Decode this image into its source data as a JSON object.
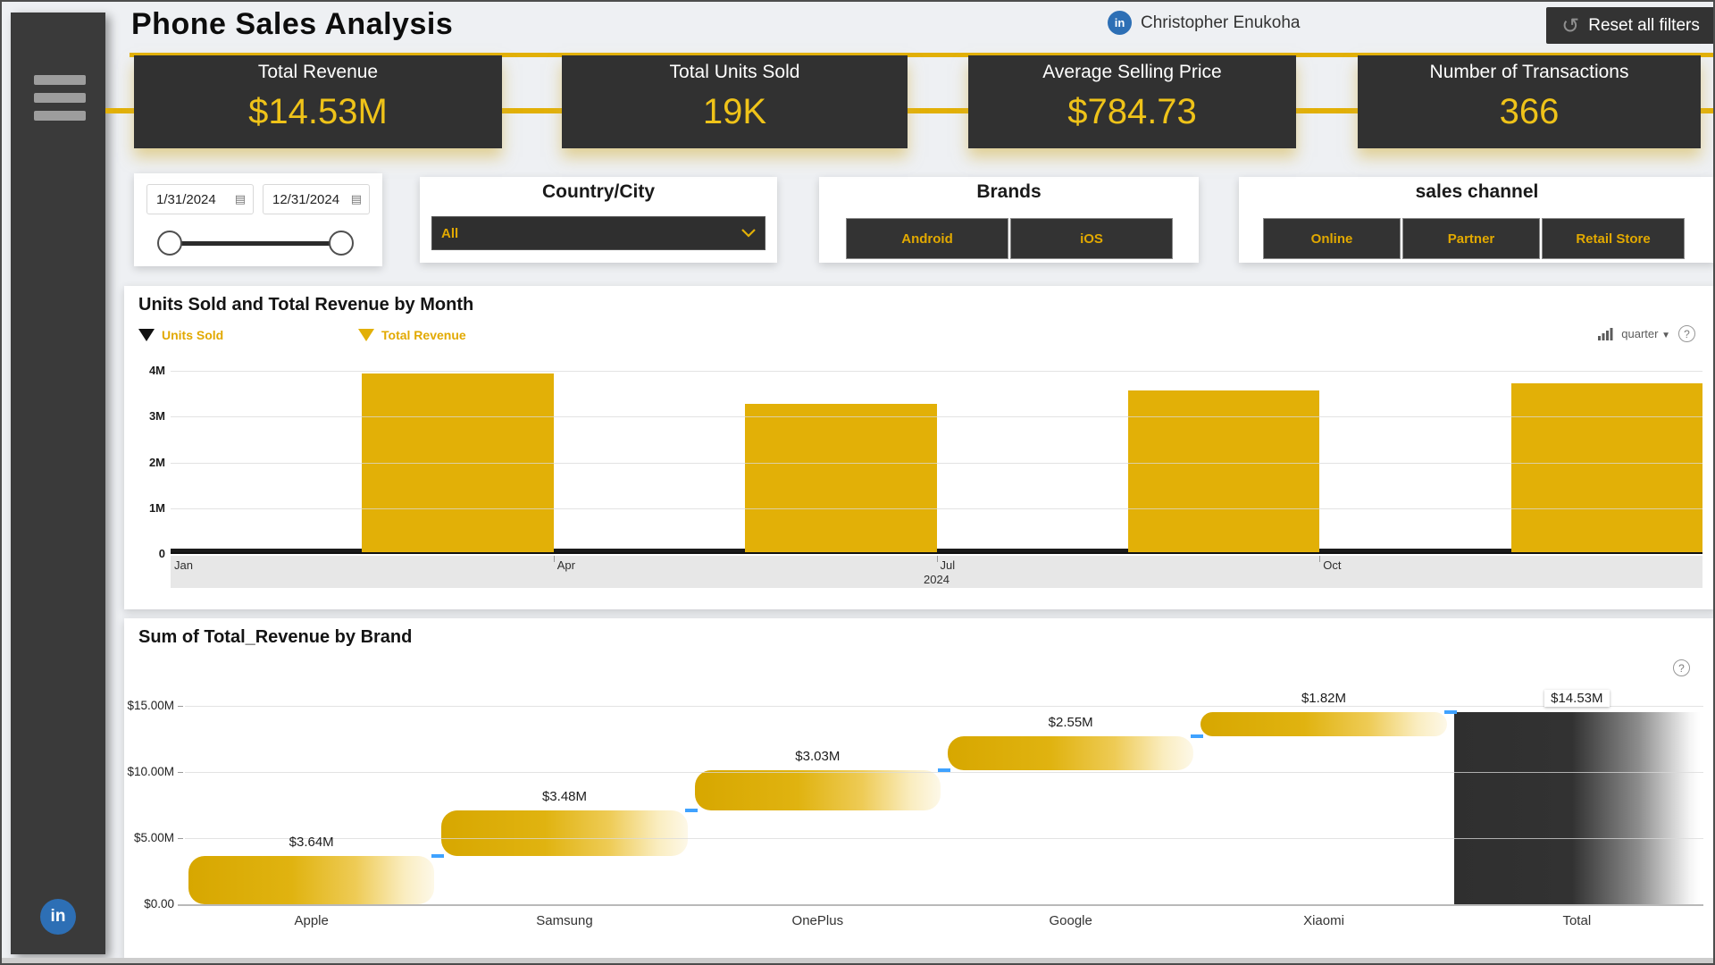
{
  "colors": {
    "accent_gold": "#E2B007",
    "gold_text": "#EFC319",
    "gold_label": "#E2A900",
    "dark": "#333333",
    "units_bar": "#1A1A1A",
    "linkedin_blue": "#2D6FB5",
    "connector_blue": "#3FA2FF"
  },
  "header": {
    "title": "Phone Sales Analysis",
    "author": "Christopher Enukoha",
    "reset_label": "Reset all filters",
    "reset_icon": "↺",
    "linkedin_icon": "in"
  },
  "kpis": [
    {
      "label": "Total Revenue",
      "value": "$14.53M"
    },
    {
      "label": "Total Units Sold",
      "value": "19K"
    },
    {
      "label": "Average Selling Price",
      "value": "$784.73"
    },
    {
      "label": "Number of Transactions",
      "value": "366"
    }
  ],
  "filters": {
    "date_range": {
      "start": "1/31/2024",
      "end": "12/31/2024",
      "calendar_icon": "▤"
    },
    "country_city": {
      "title": "Country/City",
      "selected": "All"
    },
    "brands": {
      "title": "Brands",
      "options": [
        "Android",
        "iOS"
      ]
    },
    "sales_channel": {
      "title": "sales channel",
      "options": [
        "Online",
        "Partner",
        "Retail Store"
      ]
    }
  },
  "chart_data": [
    {
      "type": "bar",
      "title": "Units Sold and Total Revenue by Month",
      "categories": [
        "Q1 2024",
        "Q2 2024",
        "Q3 2024",
        "Q4 2024"
      ],
      "series": [
        {
          "name": "Units Sold",
          "color": "#1A1A1A",
          "values": [
            4700,
            4800,
            4700,
            4800
          ]
        },
        {
          "name": "Total Revenue",
          "color": "#E2B007",
          "values": [
            3950000,
            3270000,
            3570000,
            3730000
          ]
        }
      ],
      "y_axis": {
        "max": 4000000,
        "ticks": [
          {
            "label": "4M",
            "value": 4000000
          },
          {
            "label": "3M",
            "value": 3000000
          },
          {
            "label": "2M",
            "value": 2000000
          },
          {
            "label": "1M",
            "value": 1000000
          },
          {
            "label": "0",
            "value": 0
          }
        ]
      },
      "x_axis": {
        "labels": [
          "Jan",
          "Apr",
          "Jul",
          "Oct"
        ],
        "year": "2024"
      },
      "legend_position": "top",
      "grid": true,
      "drill_label": "quarter"
    },
    {
      "type": "waterfall",
      "title": "Sum of Total_Revenue by Brand",
      "categories": [
        "Apple",
        "Samsung",
        "OnePlus",
        "Google",
        "Xiaomi",
        "Total"
      ],
      "increments_millions": [
        3.64,
        3.48,
        3.03,
        2.55,
        1.82
      ],
      "total_millions": 14.53,
      "labels": [
        "$3.64M",
        "$3.48M",
        "$3.03M",
        "$2.55M",
        "$1.82M",
        "$14.53M"
      ],
      "y_axis": {
        "max": 15,
        "ticks": [
          {
            "label": "$15.00M",
            "value": 15
          },
          {
            "label": "$10.00M",
            "value": 10
          },
          {
            "label": "$5.00M",
            "value": 5
          },
          {
            "label": "$0.00",
            "value": 0
          }
        ]
      },
      "grid": true
    }
  ]
}
